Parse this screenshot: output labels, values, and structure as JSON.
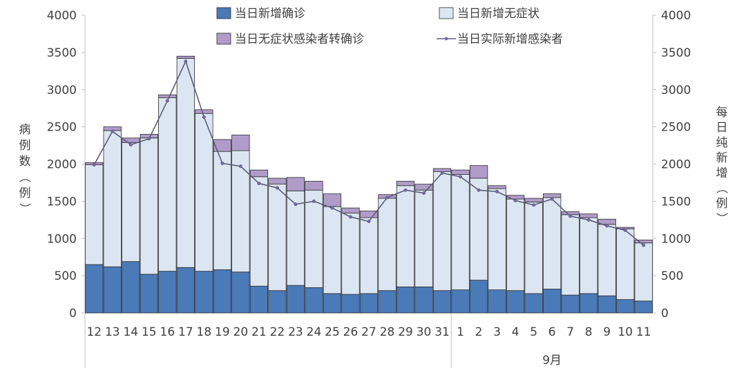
{
  "chart_data": {
    "type": "bar",
    "stacked": true,
    "categories": [
      "12",
      "13",
      "14",
      "15",
      "16",
      "17",
      "18",
      "19",
      "20",
      "21",
      "22",
      "23",
      "24",
      "25",
      "26",
      "27",
      "28",
      "29",
      "30",
      "31",
      "1",
      "2",
      "3",
      "4",
      "5",
      "6",
      "7",
      "8",
      "9",
      "10",
      "11"
    ],
    "group_label": "9月",
    "series": [
      {
        "name": "当日新增确诊",
        "type": "bar",
        "color": "#4a7ab8",
        "values": [
          650,
          620,
          690,
          520,
          560,
          610,
          560,
          580,
          550,
          360,
          300,
          370,
          340,
          260,
          250,
          260,
          300,
          350,
          350,
          300,
          310,
          440,
          310,
          300,
          260,
          320,
          240,
          260,
          230,
          180,
          160
        ]
      },
      {
        "name": "当日新增无症状",
        "type": "bar",
        "color": "#dce6f2",
        "values": [
          1340,
          1830,
          1600,
          1830,
          2330,
          2810,
          2120,
          1590,
          1630,
          1470,
          1430,
          1270,
          1310,
          1170,
          1090,
          1020,
          1240,
          1360,
          1300,
          1600,
          1550,
          1370,
          1360,
          1230,
          1230,
          1230,
          1080,
          1020,
          960,
          950,
          780
        ]
      },
      {
        "name": "当日无症状感染者转确诊",
        "type": "bar",
        "color": "#b09cc8",
        "values": [
          30,
          50,
          60,
          50,
          40,
          30,
          50,
          160,
          210,
          90,
          80,
          180,
          120,
          170,
          70,
          90,
          50,
          60,
          80,
          40,
          60,
          170,
          40,
          50,
          50,
          50,
          40,
          50,
          70,
          20,
          40
        ]
      },
      {
        "name": "当日实际新增感染者",
        "type": "line",
        "color": "#5a5a7a",
        "values": [
          1990,
          2440,
          2260,
          2340,
          2850,
          3380,
          2630,
          2010,
          1970,
          1740,
          1680,
          1460,
          1500,
          1410,
          1290,
          1230,
          1550,
          1650,
          1610,
          1880,
          1830,
          1650,
          1630,
          1510,
          1450,
          1530,
          1300,
          1250,
          1170,
          1110,
          910
        ]
      }
    ],
    "ylim": [
      0,
      4000
    ],
    "yticks": [
      0,
      500,
      1000,
      1500,
      2000,
      2500,
      3000,
      3500,
      4000
    ],
    "ylabel_left": "病例数（例）",
    "ylabel_right": "每日纯新增（例）",
    "legend": "top"
  }
}
